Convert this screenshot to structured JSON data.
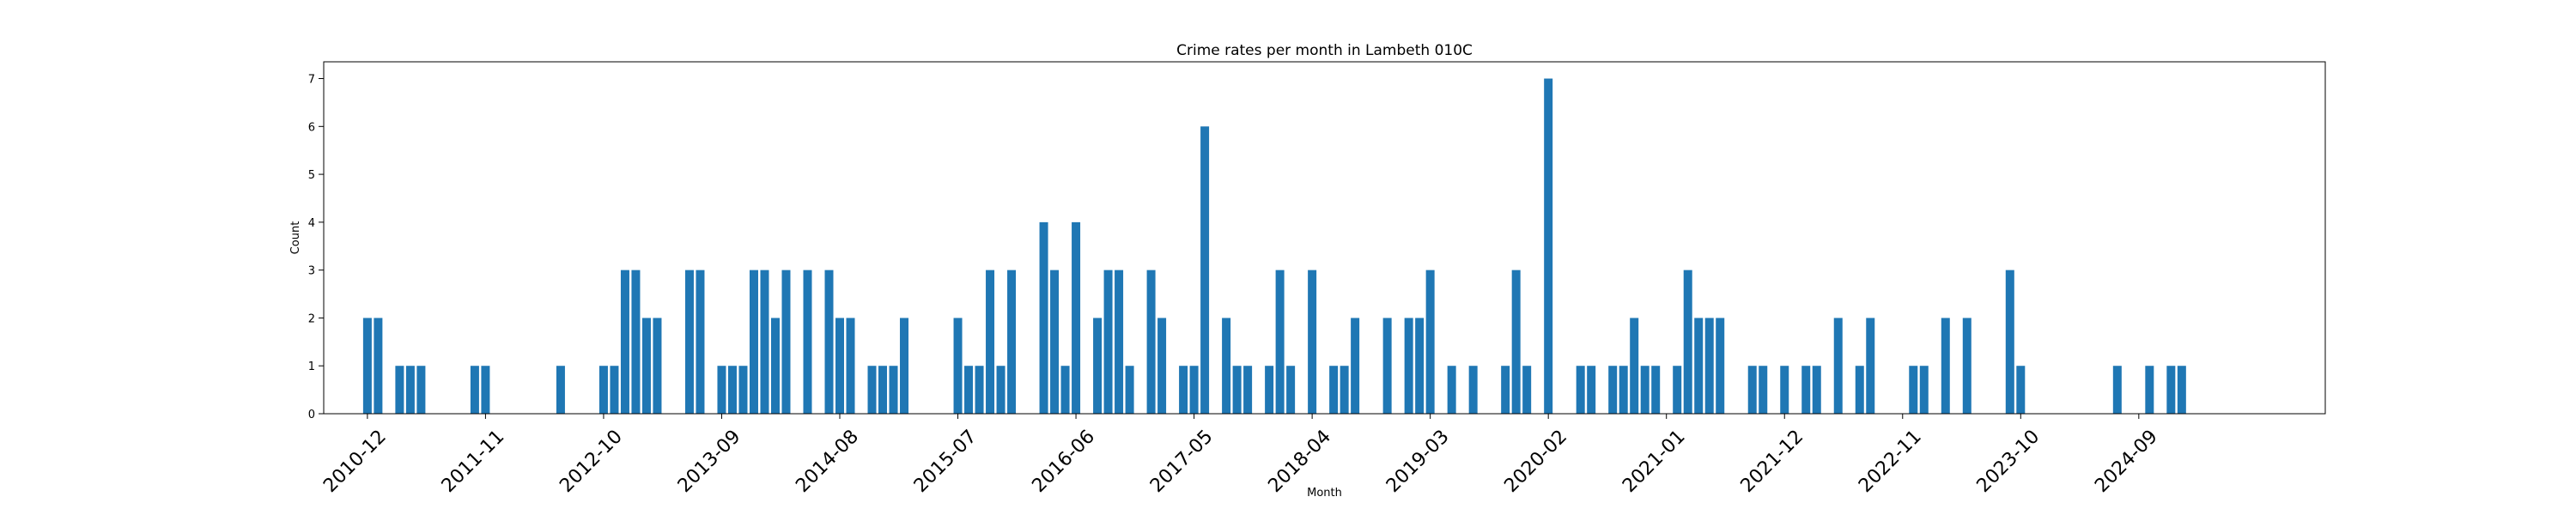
{
  "chart_data": {
    "type": "bar",
    "title": "Crime rates per month in Lambeth 010C",
    "xlabel": "Month",
    "ylabel": "Count",
    "ylim": [
      0,
      7.35
    ],
    "yticks": [
      0,
      1,
      2,
      3,
      4,
      5,
      6,
      7
    ],
    "xtick_labels": [
      "2010-12",
      "2011-11",
      "2012-10",
      "2013-09",
      "2014-08",
      "2015-07",
      "2016-06",
      "2017-05",
      "2018-04",
      "2019-03",
      "2020-02",
      "2021-01",
      "2021-12",
      "2022-11",
      "2023-10",
      "2024-09"
    ],
    "grid": false,
    "bar_color": "#1f77b4",
    "categories": [
      "2010-12",
      "2011-01",
      "2011-03",
      "2011-04",
      "2011-05",
      "2011-10",
      "2011-11",
      "2012-06",
      "2012-10",
      "2012-11",
      "2012-12",
      "2013-01",
      "2013-02",
      "2013-03",
      "2013-06",
      "2013-07",
      "2013-09",
      "2013-10",
      "2013-11",
      "2013-12",
      "2014-01",
      "2014-02",
      "2014-03",
      "2014-05",
      "2014-07",
      "2014-08",
      "2014-09",
      "2014-11",
      "2014-12",
      "2015-01",
      "2015-02",
      "2015-07",
      "2015-08",
      "2015-09",
      "2015-10",
      "2015-11",
      "2015-12",
      "2016-03",
      "2016-04",
      "2016-05",
      "2016-06",
      "2016-08",
      "2016-09",
      "2016-10",
      "2016-11",
      "2017-01",
      "2017-02",
      "2017-04",
      "2017-05",
      "2017-06",
      "2017-08",
      "2017-09",
      "2017-10",
      "2017-12",
      "2018-01",
      "2018-02",
      "2018-04",
      "2018-06",
      "2018-07",
      "2018-08",
      "2018-11",
      "2019-01",
      "2019-02",
      "2019-03",
      "2019-05",
      "2019-07",
      "2019-10",
      "2019-11",
      "2019-12",
      "2020-02",
      "2020-05",
      "2020-06",
      "2020-08",
      "2020-09",
      "2020-10",
      "2020-11",
      "2020-12",
      "2021-02",
      "2021-03",
      "2021-04",
      "2021-05",
      "2021-06",
      "2021-09",
      "2021-10",
      "2021-12",
      "2022-02",
      "2022-03",
      "2022-05",
      "2022-07",
      "2022-08",
      "2022-12",
      "2023-01",
      "2023-03",
      "2023-05",
      "2023-09",
      "2023-10",
      "2024-07",
      "2024-10",
      "2024-12",
      "2025-01"
    ],
    "values": [
      2,
      2,
      1,
      1,
      1,
      1,
      1,
      1,
      1,
      1,
      3,
      3,
      2,
      2,
      3,
      3,
      1,
      1,
      1,
      3,
      3,
      2,
      3,
      3,
      3,
      2,
      2,
      1,
      1,
      1,
      2,
      2,
      1,
      1,
      3,
      1,
      3,
      4,
      3,
      1,
      4,
      2,
      3,
      3,
      1,
      3,
      2,
      1,
      1,
      6,
      2,
      1,
      1,
      1,
      3,
      1,
      3,
      1,
      1,
      2,
      2,
      2,
      2,
      3,
      1,
      1,
      1,
      3,
      1,
      7,
      1,
      1,
      1,
      1,
      2,
      1,
      1,
      1,
      3,
      2,
      2,
      2,
      1,
      1,
      1,
      1,
      1,
      2,
      1,
      2,
      1,
      1,
      2,
      2,
      3,
      1,
      1,
      1,
      1,
      1
    ]
  }
}
